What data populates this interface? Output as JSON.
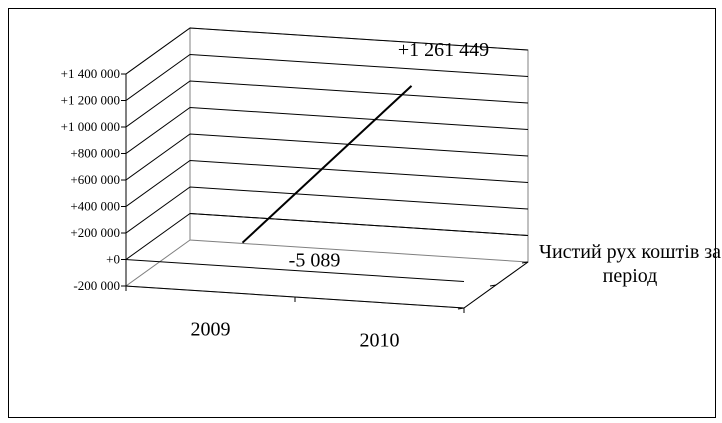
{
  "chart_data": {
    "type": "line",
    "categories": [
      "2009",
      "2010"
    ],
    "series": [
      {
        "name": "Чистий рух коштів за період",
        "values": [
          -5089,
          1261449
        ]
      }
    ],
    "data_labels": [
      "-5 089",
      "+1 261 449"
    ],
    "y_ticks": [
      -200000,
      0,
      200000,
      400000,
      600000,
      800000,
      1000000,
      1200000,
      1400000
    ],
    "y_tick_labels": [
      "-200 000",
      "+0",
      "+200 000",
      "+400 000",
      "+600 000",
      "+800 000",
      "+1 000 000",
      "+1 200 000",
      "+1 400 000"
    ],
    "ylim": [
      -200000,
      1400000
    ],
    "series_axis_label_lines": [
      "Чистий рух коштів за",
      "період"
    ],
    "projection": "3d",
    "grid": true,
    "line_color": "#000000"
  }
}
